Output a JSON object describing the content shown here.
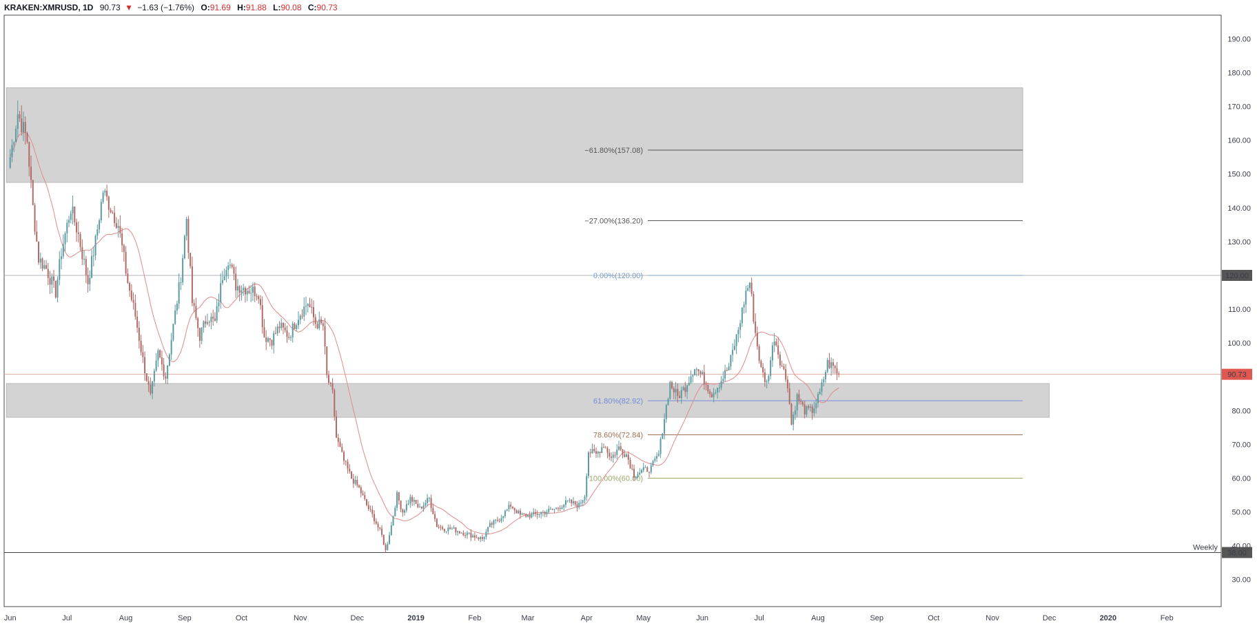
{
  "header": {
    "symbol": "KRAKEN:XMRUSD, 1D",
    "last": "90.73",
    "change": "−1.63 (−1.76%)",
    "open_label": "O:",
    "open": "91.69",
    "high_label": "H:",
    "high": "91.88",
    "low_label": "L:",
    "low": "90.08",
    "close_label": "C:",
    "close": "90.73"
  },
  "colors": {
    "up": "#5b9aa0",
    "down": "#b06a66",
    "zone": "#d3d3d3",
    "ma": "#e08a8a",
    "fib_neg": "#555555",
    "fib_0": "#7a9cc6",
    "fib_618": "#6f8cd6",
    "fib_786": "#a07050",
    "fib_100": "#9aa86a"
  },
  "chart_data": {
    "type": "candlestick",
    "title": "",
    "xlabel": "",
    "ylabel": "",
    "ylim": [
      22,
      197
    ],
    "y_ticks": [
      "30.00",
      "40.00",
      "50.00",
      "60.00",
      "70.00",
      "80.00",
      "90.00",
      "100.00",
      "110.00",
      "120.00",
      "130.00",
      "140.00",
      "150.00",
      "160.00",
      "170.00",
      "180.00",
      "190.00"
    ],
    "x_ticks": [
      {
        "label": "Jun",
        "date": "2018-06-01"
      },
      {
        "label": "Jul",
        "date": "2018-07-01"
      },
      {
        "label": "Aug",
        "date": "2018-08-01"
      },
      {
        "label": "Sep",
        "date": "2018-09-01"
      },
      {
        "label": "Oct",
        "date": "2018-10-01"
      },
      {
        "label": "Nov",
        "date": "2018-11-01"
      },
      {
        "label": "Dec",
        "date": "2018-12-01"
      },
      {
        "label": "2019",
        "date": "2019-01-01"
      },
      {
        "label": "Feb",
        "date": "2019-02-01"
      },
      {
        "label": "Mar",
        "date": "2019-03-01"
      },
      {
        "label": "Apr",
        "date": "2019-04-01"
      },
      {
        "label": "May",
        "date": "2019-05-01"
      },
      {
        "label": "Jun",
        "date": "2019-06-01"
      },
      {
        "label": "Jul",
        "date": "2019-07-01"
      },
      {
        "label": "Aug",
        "date": "2019-08-01"
      },
      {
        "label": "Sep",
        "date": "2019-09-01"
      },
      {
        "label": "Oct",
        "date": "2019-10-01"
      },
      {
        "label": "Nov",
        "date": "2019-11-01"
      },
      {
        "label": "Dec",
        "date": "2019-12-01"
      },
      {
        "label": "2020",
        "date": "2020-01-01"
      },
      {
        "label": "Feb",
        "date": "2020-02-01"
      }
    ],
    "close_path": [
      [
        "2018-06-01",
        155
      ],
      [
        "2018-06-05",
        168
      ],
      [
        "2018-06-10",
        160
      ],
      [
        "2018-06-13",
        140
      ],
      [
        "2018-06-16",
        125
      ],
      [
        "2018-06-20",
        122
      ],
      [
        "2018-06-25",
        115
      ],
      [
        "2018-06-28",
        127
      ],
      [
        "2018-07-03",
        140
      ],
      [
        "2018-07-07",
        132
      ],
      [
        "2018-07-12",
        118
      ],
      [
        "2018-07-16",
        130
      ],
      [
        "2018-07-20",
        145
      ],
      [
        "2018-07-24",
        140
      ],
      [
        "2018-07-28",
        135
      ],
      [
        "2018-08-02",
        118
      ],
      [
        "2018-08-06",
        108
      ],
      [
        "2018-08-10",
        95
      ],
      [
        "2018-08-14",
        84
      ],
      [
        "2018-08-18",
        97
      ],
      [
        "2018-08-22",
        90
      ],
      [
        "2018-08-26",
        105
      ],
      [
        "2018-08-30",
        120
      ],
      [
        "2018-09-02",
        137
      ],
      [
        "2018-09-05",
        112
      ],
      [
        "2018-09-09",
        102
      ],
      [
        "2018-09-13",
        108
      ],
      [
        "2018-09-17",
        106
      ],
      [
        "2018-09-21",
        120
      ],
      [
        "2018-09-24",
        125
      ],
      [
        "2018-09-28",
        117
      ],
      [
        "2018-10-04",
        116
      ],
      [
        "2018-10-10",
        115
      ],
      [
        "2018-10-13",
        102
      ],
      [
        "2018-10-17",
        101
      ],
      [
        "2018-10-21",
        105
      ],
      [
        "2018-10-26",
        102
      ],
      [
        "2018-10-31",
        108
      ],
      [
        "2018-11-05",
        112
      ],
      [
        "2018-11-09",
        106
      ],
      [
        "2018-11-13",
        105
      ],
      [
        "2018-11-15",
        90
      ],
      [
        "2018-11-18",
        85
      ],
      [
        "2018-11-20",
        72
      ],
      [
        "2018-11-24",
        65
      ],
      [
        "2018-11-28",
        60
      ],
      [
        "2018-12-02",
        57
      ],
      [
        "2018-12-06",
        52
      ],
      [
        "2018-12-10",
        48
      ],
      [
        "2018-12-14",
        43
      ],
      [
        "2018-12-16",
        38.5
      ],
      [
        "2018-12-19",
        46
      ],
      [
        "2018-12-22",
        55
      ],
      [
        "2018-12-25",
        50
      ],
      [
        "2018-12-29",
        54
      ],
      [
        "2019-01-03",
        51
      ],
      [
        "2019-01-08",
        54
      ],
      [
        "2019-01-12",
        46
      ],
      [
        "2019-01-16",
        45
      ],
      [
        "2019-01-20",
        45
      ],
      [
        "2019-01-25",
        44
      ],
      [
        "2019-01-31",
        43
      ],
      [
        "2019-02-05",
        42
      ],
      [
        "2019-02-09",
        46
      ],
      [
        "2019-02-14",
        48
      ],
      [
        "2019-02-20",
        52
      ],
      [
        "2019-02-25",
        49
      ],
      [
        "2019-03-03",
        49
      ],
      [
        "2019-03-10",
        50
      ],
      [
        "2019-03-16",
        51
      ],
      [
        "2019-03-22",
        53
      ],
      [
        "2019-03-28",
        52
      ],
      [
        "2019-03-31",
        55
      ],
      [
        "2019-04-02",
        68
      ],
      [
        "2019-04-06",
        67
      ],
      [
        "2019-04-10",
        70
      ],
      [
        "2019-04-14",
        66
      ],
      [
        "2019-04-18",
        69
      ],
      [
        "2019-04-22",
        67
      ],
      [
        "2019-04-26",
        61
      ],
      [
        "2019-04-30",
        62
      ],
      [
        "2019-05-05",
        63
      ],
      [
        "2019-05-09",
        67
      ],
      [
        "2019-05-12",
        78
      ],
      [
        "2019-05-15",
        88
      ],
      [
        "2019-05-19",
        84
      ],
      [
        "2019-05-23",
        87
      ],
      [
        "2019-05-28",
        93
      ],
      [
        "2019-06-01",
        90
      ],
      [
        "2019-06-06",
        85
      ],
      [
        "2019-06-10",
        88
      ],
      [
        "2019-06-15",
        93
      ],
      [
        "2019-06-20",
        104
      ],
      [
        "2019-06-24",
        115
      ],
      [
        "2019-06-26",
        118
      ],
      [
        "2019-06-29",
        103
      ],
      [
        "2019-07-02",
        92
      ],
      [
        "2019-07-05",
        88
      ],
      [
        "2019-07-09",
        102
      ],
      [
        "2019-07-12",
        95
      ],
      [
        "2019-07-16",
        88
      ],
      [
        "2019-07-18",
        76
      ],
      [
        "2019-07-21",
        84
      ],
      [
        "2019-07-25",
        80
      ],
      [
        "2019-07-29",
        80
      ],
      [
        "2019-08-02",
        85
      ],
      [
        "2019-08-06",
        94
      ],
      [
        "2019-08-09",
        93
      ],
      [
        "2019-08-12",
        90.73
      ]
    ],
    "zones": [
      {
        "from_date": "2018-05-30",
        "to_date": "2019-11-17",
        "top": 175.5,
        "bottom": 147.5
      },
      {
        "from_date": "2018-05-30",
        "to_date": "2019-12-01",
        "top": 88,
        "bottom": 78
      }
    ],
    "fib_levels": [
      {
        "label": "−61.80%(157.08)",
        "value": 157.08,
        "color_key": "fib_neg"
      },
      {
        "label": "−27.00%(136.20)",
        "value": 136.2,
        "color_key": "fib_neg"
      },
      {
        "label": "0.00%(120.00)",
        "value": 120.0,
        "color_key": "fib_0"
      },
      {
        "label": "61.80%(82.92)",
        "value": 82.92,
        "color_key": "fib_618"
      },
      {
        "label": "78.60%(72.84)",
        "value": 72.84,
        "color_key": "fib_786"
      },
      {
        "label": "100.00%(60.00)",
        "value": 60.0,
        "color_key": "fib_100"
      }
    ],
    "fib_range": {
      "from_date": "2019-04-01",
      "to_date": "2019-11-17"
    },
    "horizontal_lines": [
      {
        "value": 120.0,
        "label": "120.00",
        "badge_color": "#555555"
      },
      {
        "value": 90.73,
        "label": "90.73",
        "badge_color": "#e0574f"
      },
      {
        "value": 38.0,
        "label": "38.00",
        "badge_color": "#555555",
        "text": "Weekly"
      }
    ]
  }
}
